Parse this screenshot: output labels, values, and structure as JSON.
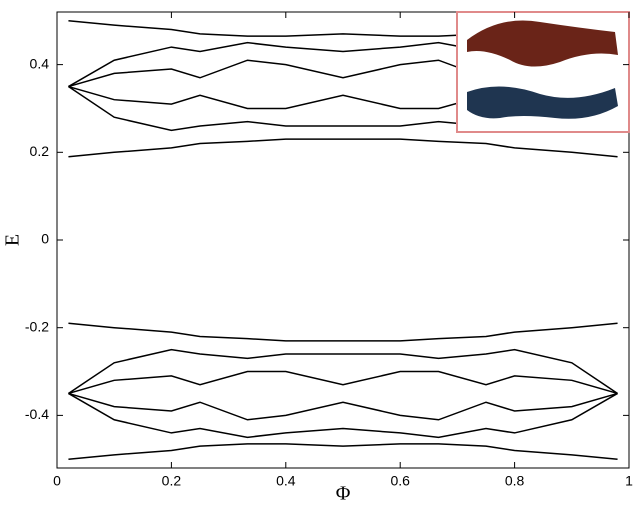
{
  "chart_data": {
    "type": "line",
    "xlabel": "Φ",
    "ylabel": "E",
    "x": [
      0.02,
      0.1,
      0.2,
      0.25,
      0.333,
      0.4,
      0.5,
      0.6,
      0.667,
      0.75,
      0.8,
      0.9,
      0.98
    ],
    "series": [
      {
        "color": "#000000",
        "values": [
          0.5,
          0.49,
          0.48,
          0.47,
          0.465,
          0.465,
          0.47,
          0.465,
          0.465,
          0.47,
          0.48,
          0.49,
          0.5
        ]
      },
      {
        "color": "#000000",
        "values": [
          0.35,
          0.41,
          0.44,
          0.43,
          0.45,
          0.44,
          0.43,
          0.44,
          0.45,
          0.43,
          0.44,
          0.41,
          0.35
        ]
      },
      {
        "color": "#000000",
        "values": [
          0.35,
          0.38,
          0.39,
          0.37,
          0.41,
          0.4,
          0.37,
          0.4,
          0.41,
          0.37,
          0.39,
          0.38,
          0.35
        ]
      },
      {
        "color": "#000000",
        "values": [
          0.35,
          0.32,
          0.31,
          0.33,
          0.3,
          0.3,
          0.33,
          0.3,
          0.3,
          0.33,
          0.31,
          0.32,
          0.35
        ]
      },
      {
        "color": "#000000",
        "values": [
          0.35,
          0.28,
          0.25,
          0.26,
          0.27,
          0.26,
          0.26,
          0.26,
          0.27,
          0.26,
          0.25,
          0.28,
          0.35
        ]
      },
      {
        "color": "#000000",
        "values": [
          0.19,
          0.2,
          0.21,
          0.22,
          0.225,
          0.23,
          0.23,
          0.23,
          0.225,
          0.22,
          0.21,
          0.2,
          0.19
        ]
      },
      {
        "color": "#000000",
        "values": [
          -0.19,
          -0.2,
          -0.21,
          -0.22,
          -0.225,
          -0.23,
          -0.23,
          -0.23,
          -0.225,
          -0.22,
          -0.21,
          -0.2,
          -0.19
        ]
      },
      {
        "color": "#000000",
        "values": [
          -0.35,
          -0.28,
          -0.25,
          -0.26,
          -0.27,
          -0.26,
          -0.26,
          -0.26,
          -0.27,
          -0.26,
          -0.25,
          -0.28,
          -0.35
        ]
      },
      {
        "color": "#000000",
        "values": [
          -0.35,
          -0.32,
          -0.31,
          -0.33,
          -0.3,
          -0.3,
          -0.33,
          -0.3,
          -0.3,
          -0.33,
          -0.31,
          -0.32,
          -0.35
        ]
      },
      {
        "color": "#000000",
        "values": [
          -0.35,
          -0.38,
          -0.39,
          -0.37,
          -0.41,
          -0.4,
          -0.37,
          -0.4,
          -0.41,
          -0.37,
          -0.39,
          -0.38,
          -0.35
        ]
      },
      {
        "color": "#000000",
        "values": [
          -0.35,
          -0.41,
          -0.44,
          -0.43,
          -0.45,
          -0.44,
          -0.43,
          -0.44,
          -0.45,
          -0.43,
          -0.44,
          -0.41,
          -0.35
        ]
      },
      {
        "color": "#000000",
        "values": [
          -0.5,
          -0.49,
          -0.48,
          -0.47,
          -0.465,
          -0.465,
          -0.47,
          -0.465,
          -0.465,
          -0.47,
          -0.48,
          -0.49,
          -0.5
        ]
      }
    ],
    "xlim": [
      0,
      1
    ],
    "xticks": [
      0,
      0.2,
      0.4,
      0.6,
      0.8,
      1
    ],
    "ylim": [
      -0.52,
      0.52
    ],
    "yticks": [
      -0.4,
      -0.2,
      0,
      0.2,
      0.4
    ],
    "grid": false
  }
}
